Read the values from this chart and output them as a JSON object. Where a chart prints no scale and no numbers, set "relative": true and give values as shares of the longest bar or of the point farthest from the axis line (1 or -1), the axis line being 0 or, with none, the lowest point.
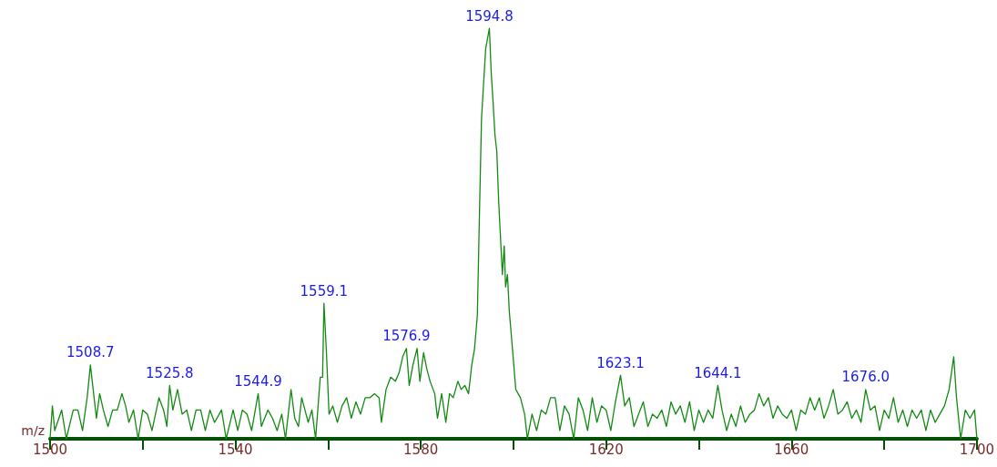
{
  "chart_data": {
    "type": "line",
    "relative": true,
    "xlabel": "m/z",
    "xlim": [
      1500,
      1700
    ],
    "xticks": [
      1500,
      {
        "value": 1520,
        "label": null
      },
      1540,
      {
        "value": 1560,
        "label": null
      },
      1580,
      {
        "value": 1600,
        "label": null
      },
      1620,
      {
        "value": 1640,
        "label": null
      },
      1660,
      {
        "value": 1680,
        "label": null
      },
      1700
    ],
    "marker": "none",
    "grid": false,
    "annotations": [
      {
        "text": "1508.7",
        "x": 1508.7,
        "y": 0.18
      },
      {
        "text": "1525.8",
        "x": 1525.8,
        "y": 0.13
      },
      {
        "text": "1544.9",
        "x": 1544.9,
        "y": 0.11
      },
      {
        "text": "1559.1",
        "x": 1559.1,
        "y": 0.33
      },
      {
        "text": "1576.9",
        "x": 1576.9,
        "y": 0.22
      },
      {
        "text": "1594.8",
        "x": 1594.8,
        "y": 1
      },
      {
        "text": "1623.1",
        "x": 1623.1,
        "y": 0.155
      },
      {
        "text": "1644.1",
        "x": 1644.1,
        "y": 0.13
      },
      {
        "text": "1676.0",
        "x": 1676.0,
        "y": 0.12
      }
    ],
    "series": [
      {
        "color": "#128a12",
        "x": [
          1500,
          1500.5,
          1501,
          1502.5,
          1503.5,
          1505,
          1506,
          1507,
          1508,
          1508.7,
          1509.3,
          1510,
          1510.7,
          1511.5,
          1512.5,
          1513.5,
          1514.5,
          1515.5,
          1516.3,
          1517,
          1518,
          1519,
          1520,
          1521,
          1522,
          1523.5,
          1524.5,
          1525.2,
          1525.8,
          1526.5,
          1527.5,
          1528.5,
          1529.5,
          1530.5,
          1531.5,
          1532.5,
          1533.5,
          1534.5,
          1535.5,
          1537,
          1538,
          1539.5,
          1540.5,
          1541.5,
          1542.5,
          1543.5,
          1544.9,
          1545.6,
          1547,
          1548,
          1549,
          1550,
          1550.8,
          1552,
          1552.8,
          1553.6,
          1554.3,
          1555,
          1555.7,
          1556.5,
          1557.3,
          1558.3,
          1558.8,
          1559.1,
          1559.6,
          1560.2,
          1561,
          1562,
          1563,
          1564,
          1565,
          1566,
          1567,
          1568,
          1569,
          1570,
          1571,
          1571.5,
          1572.5,
          1573.5,
          1574.5,
          1575.3,
          1576.1,
          1576.9,
          1577.5,
          1578.3,
          1579.2,
          1579.8,
          1580.6,
          1581.3,
          1582,
          1583,
          1583.6,
          1584.5,
          1585.4,
          1586.2,
          1587,
          1588,
          1588.7,
          1589.5,
          1590.3,
          1591,
          1591.6,
          1592.2,
          1592.7,
          1593.1,
          1594.0,
          1594.8,
          1595.2,
          1595.6,
          1596.0,
          1596.4,
          1596.8,
          1597.2,
          1597.6,
          1598.0,
          1598.3,
          1598.7,
          1599.1,
          1599.7,
          1600.5,
          1601.5,
          1602.4,
          1603,
          1604,
          1605,
          1606,
          1607,
          1608,
          1609,
          1610,
          1611,
          1612,
          1613,
          1614,
          1615,
          1616,
          1617,
          1618,
          1619,
          1620,
          1621,
          1622,
          1623.1,
          1624,
          1625,
          1626,
          1627,
          1628,
          1629,
          1630,
          1631,
          1632,
          1633,
          1634,
          1635,
          1636,
          1637,
          1638,
          1639,
          1640,
          1641,
          1642,
          1643,
          1644.1,
          1645,
          1646,
          1647,
          1648,
          1649,
          1650,
          1651,
          1652,
          1653,
          1654,
          1655,
          1656,
          1657,
          1658,
          1659,
          1660,
          1661,
          1662,
          1663,
          1664,
          1665,
          1666,
          1667,
          1668,
          1669,
          1670,
          1671,
          1672,
          1673,
          1674,
          1675,
          1676.0,
          1677,
          1678,
          1679,
          1680,
          1681,
          1682,
          1683,
          1684,
          1685,
          1686,
          1687,
          1688,
          1689,
          1690,
          1691,
          1692,
          1693,
          1694,
          1695,
          1695.6,
          1696.5,
          1697.5,
          1698.5,
          1699.5,
          1700
        ],
        "values": [
          0,
          0.08,
          0.02,
          0.07,
          0,
          0.07,
          0.07,
          0.02,
          0.1,
          0.18,
          0.12,
          0.05,
          0.11,
          0.07,
          0.03,
          0.07,
          0.07,
          0.11,
          0.08,
          0.04,
          0.07,
          0,
          0.07,
          0.06,
          0.02,
          0.1,
          0.07,
          0.03,
          0.13,
          0.07,
          0.12,
          0.06,
          0.07,
          0.02,
          0.07,
          0.07,
          0.02,
          0.07,
          0.04,
          0.07,
          0,
          0.07,
          0.02,
          0.07,
          0.06,
          0.02,
          0.11,
          0.03,
          0.07,
          0.05,
          0.02,
          0.06,
          0,
          0.12,
          0.05,
          0.03,
          0.1,
          0.07,
          0.04,
          0.07,
          0,
          0.15,
          0.15,
          0.33,
          0.22,
          0.06,
          0.08,
          0.04,
          0.08,
          0.1,
          0.05,
          0.09,
          0.06,
          0.1,
          0.1,
          0.11,
          0.1,
          0.04,
          0.12,
          0.15,
          0.14,
          0.16,
          0.2,
          0.22,
          0.13,
          0.18,
          0.22,
          0.14,
          0.21,
          0.17,
          0.14,
          0.11,
          0.05,
          0.11,
          0.04,
          0.11,
          0.1,
          0.14,
          0.12,
          0.13,
          0.11,
          0.18,
          0.22,
          0.3,
          0.57,
          0.78,
          0.95,
          1,
          0.89,
          0.82,
          0.74,
          0.7,
          0.58,
          0.49,
          0.4,
          0.47,
          0.37,
          0.4,
          0.31,
          0.23,
          0.12,
          0.1,
          0.06,
          0,
          0.06,
          0.02,
          0.07,
          0.06,
          0.1,
          0.1,
          0.02,
          0.08,
          0.06,
          0,
          0.1,
          0.07,
          0.02,
          0.1,
          0.04,
          0.08,
          0.07,
          0.02,
          0.09,
          0.155,
          0.08,
          0.1,
          0.03,
          0.06,
          0.09,
          0.03,
          0.06,
          0.05,
          0.07,
          0.03,
          0.09,
          0.06,
          0.08,
          0.04,
          0.09,
          0.02,
          0.07,
          0.04,
          0.07,
          0.05,
          0.13,
          0.07,
          0.02,
          0.06,
          0.03,
          0.08,
          0.04,
          0.06,
          0.07,
          0.11,
          0.08,
          0.1,
          0.05,
          0.08,
          0.06,
          0.05,
          0.07,
          0.02,
          0.07,
          0.06,
          0.1,
          0.07,
          0.1,
          0.05,
          0.08,
          0.12,
          0.06,
          0.07,
          0.09,
          0.05,
          0.07,
          0.04,
          0.12,
          0.07,
          0.08,
          0.02,
          0.07,
          0.05,
          0.1,
          0.04,
          0.07,
          0.03,
          0.07,
          0.05,
          0.07,
          0.02,
          0.07,
          0.04,
          0.06,
          0.08,
          0.12,
          0.2,
          0.1,
          0,
          0.07,
          0.05,
          0.07,
          0
        ]
      }
    ]
  }
}
